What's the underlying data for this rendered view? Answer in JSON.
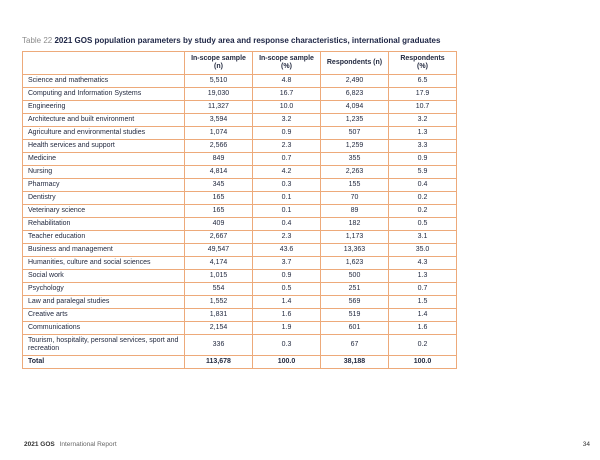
{
  "page": {
    "table_label": "Table 22",
    "title": "2021 GOS population parameters by study area and response characteristics, international graduates"
  },
  "table": {
    "columns": [
      "In-scope sample (n)",
      "In-scope sample (%)",
      "Respondents (n)",
      "Respondents (%)"
    ],
    "rows": [
      {
        "label": "Science and mathematics",
        "values": [
          "5,510",
          "4.8",
          "2,490",
          "6.5"
        ]
      },
      {
        "label": "Computing and Information Systems",
        "values": [
          "19,030",
          "16.7",
          "6,823",
          "17.9"
        ]
      },
      {
        "label": "Engineering",
        "values": [
          "11,327",
          "10.0",
          "4,094",
          "10.7"
        ]
      },
      {
        "label": "Architecture and built environment",
        "values": [
          "3,594",
          "3.2",
          "1,235",
          "3.2"
        ]
      },
      {
        "label": "Agriculture and environmental studies",
        "values": [
          "1,074",
          "0.9",
          "507",
          "1.3"
        ]
      },
      {
        "label": "Health services and support",
        "values": [
          "2,566",
          "2.3",
          "1,259",
          "3.3"
        ]
      },
      {
        "label": "Medicine",
        "values": [
          "849",
          "0.7",
          "355",
          "0.9"
        ]
      },
      {
        "label": "Nursing",
        "values": [
          "4,814",
          "4.2",
          "2,263",
          "5.9"
        ]
      },
      {
        "label": "Pharmacy",
        "values": [
          "345",
          "0.3",
          "155",
          "0.4"
        ]
      },
      {
        "label": "Dentistry",
        "values": [
          "165",
          "0.1",
          "70",
          "0.2"
        ]
      },
      {
        "label": "Veterinary science",
        "values": [
          "165",
          "0.1",
          "89",
          "0.2"
        ]
      },
      {
        "label": "Rehabilitation",
        "values": [
          "409",
          "0.4",
          "182",
          "0.5"
        ]
      },
      {
        "label": "Teacher education",
        "values": [
          "2,667",
          "2.3",
          "1,173",
          "3.1"
        ]
      },
      {
        "label": "Business and management",
        "values": [
          "49,547",
          "43.6",
          "13,363",
          "35.0"
        ]
      },
      {
        "label": "Humanities, culture and social sciences",
        "values": [
          "4,174",
          "3.7",
          "1,623",
          "4.3"
        ]
      },
      {
        "label": "Social work",
        "values": [
          "1,015",
          "0.9",
          "500",
          "1.3"
        ]
      },
      {
        "label": "Psychology",
        "values": [
          "554",
          "0.5",
          "251",
          "0.7"
        ]
      },
      {
        "label": "Law and paralegal studies",
        "values": [
          "1,552",
          "1.4",
          "569",
          "1.5"
        ]
      },
      {
        "label": "Creative arts",
        "values": [
          "1,831",
          "1.6",
          "519",
          "1.4"
        ]
      },
      {
        "label": "Communications",
        "values": [
          "2,154",
          "1.9",
          "601",
          "1.6"
        ]
      },
      {
        "label": "Tourism, hospitality, personal services, sport and recreation",
        "values": [
          "336",
          "0.3",
          "67",
          "0.2"
        ]
      }
    ],
    "total": {
      "label": "Total",
      "values": [
        "113,678",
        "100.0",
        "38,188",
        "100.0"
      ]
    }
  },
  "footer": {
    "report_name_bold": "2021 GOS",
    "report_name_rest": "International Report",
    "page_number": "34"
  },
  "colors": {
    "table_border": "#edaa7a",
    "body_text": "#232a40",
    "title_text": "#1d2545",
    "caption_label": "#8c8c8c"
  }
}
